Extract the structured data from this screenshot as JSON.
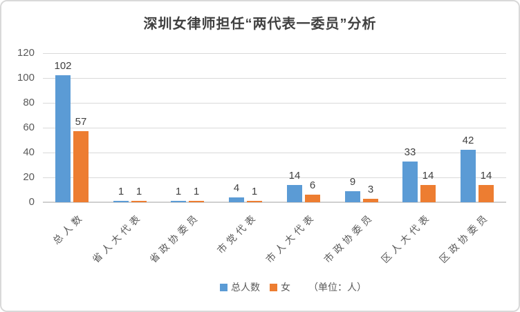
{
  "title": "深圳女律师担任“两代表一委员”分析",
  "chart_data": {
    "type": "bar",
    "title": "深圳女律师担任“两代表一委员”分析",
    "categories": [
      "总人数",
      "省人大代表",
      "省政协委员",
      "市党代表",
      "市人大代表",
      "市政协委员",
      "区人大代表",
      "区政协委员"
    ],
    "series": [
      {
        "name": "总人数",
        "color": "#5B9BD5",
        "values": [
          102,
          1,
          1,
          4,
          14,
          9,
          33,
          42
        ]
      },
      {
        "name": "女",
        "color": "#ED7D31",
        "values": [
          57,
          1,
          1,
          1,
          6,
          3,
          14,
          14
        ]
      }
    ],
    "ylim": [
      0,
      120
    ],
    "ytick_interval": 20,
    "ytick_labels": [
      "0",
      "20",
      "40",
      "60",
      "80",
      "100",
      "120"
    ],
    "grid": true,
    "data_labels": true,
    "legend_position": "bottom",
    "unit_note": "（单位：人）"
  },
  "colors": {
    "series_blue": "#5B9BD5",
    "series_orange": "#ED7D31",
    "title_text": "#404040",
    "axis_text": "#595959",
    "gridline": "#D9D9D9",
    "border": "#D9D9D9",
    "background": "#FFFFFF"
  }
}
